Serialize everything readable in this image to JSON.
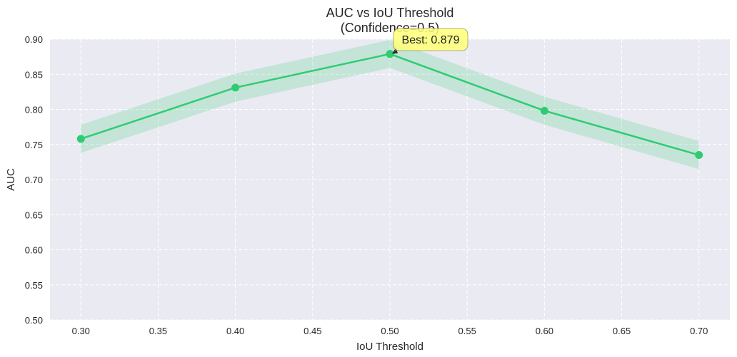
{
  "chart_data": {
    "type": "line",
    "title": "AUC vs IoU Threshold",
    "subtitle": "(Confidence=0.5)",
    "xlabel": "IoU Threshold",
    "ylabel": "AUC",
    "xlim": [
      0.28,
      0.72
    ],
    "ylim": [
      0.5,
      0.9
    ],
    "x_ticks": [
      "0.30",
      "0.35",
      "0.40",
      "0.45",
      "0.50",
      "0.55",
      "0.60",
      "0.65",
      "0.70"
    ],
    "y_ticks": [
      "0.50",
      "0.55",
      "0.60",
      "0.65",
      "0.70",
      "0.75",
      "0.80",
      "0.85",
      "0.90"
    ],
    "grid": true,
    "series": [
      {
        "x": [
          0.3,
          0.4,
          0.5,
          0.6,
          0.7
        ],
        "y": [
          0.758,
          0.831,
          0.879,
          0.798,
          0.735
        ],
        "band_lower": [
          0.738,
          0.811,
          0.859,
          0.778,
          0.715
        ],
        "band_upper": [
          0.778,
          0.851,
          0.899,
          0.818,
          0.755
        ],
        "color": "#2ecc71",
        "band_color": "#2ecc71"
      }
    ],
    "annotation": {
      "text": "Best: 0.879",
      "x": 0.5,
      "y": 0.879,
      "box_color": "#ffff77"
    }
  }
}
